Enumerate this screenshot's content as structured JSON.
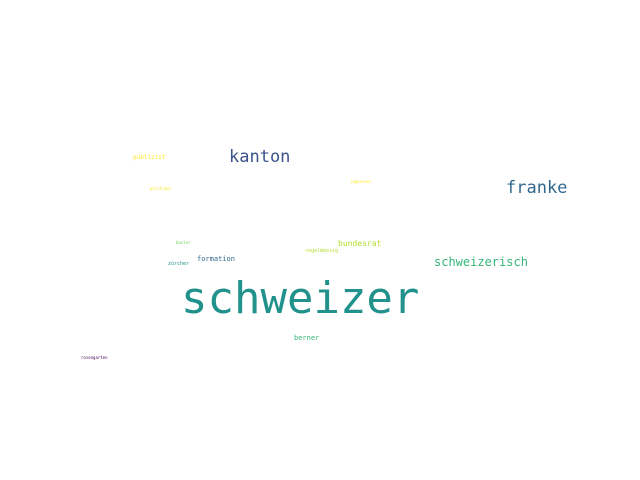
{
  "word_cloud": {
    "words": [
      {
        "key": "schweizer",
        "text": "schweizer",
        "color": "#21918c"
      },
      {
        "key": "kanton",
        "text": "kanton",
        "color": "#3b528b"
      },
      {
        "key": "franke",
        "text": "franke",
        "color": "#31688e"
      },
      {
        "key": "schweizerisch",
        "text": "schweizerisch",
        "color": "#35b779"
      },
      {
        "key": "bundesrat",
        "text": "bundesrat",
        "color": "#b5de2b"
      },
      {
        "key": "formation",
        "text": "formation",
        "color": "#31688e"
      },
      {
        "key": "regelmaessig",
        "text": "regelmässig",
        "color": "#b5de2b"
      },
      {
        "key": "zuercher",
        "text": "zürcher",
        "color": "#21918c"
      },
      {
        "key": "berner",
        "text": "berner",
        "color": "#35b779"
      },
      {
        "key": "publizist",
        "text": "publizist",
        "color": "#fde725"
      },
      {
        "key": "politiker",
        "text": "politiker",
        "color": "#fde725"
      },
      {
        "key": "ingenieur",
        "text": "ingenieur",
        "color": "#fde725"
      },
      {
        "key": "basler",
        "text": "basler",
        "color": "#6ece58"
      },
      {
        "key": "rosengarten",
        "text": "rosengarten",
        "color": "#440154"
      }
    ]
  }
}
